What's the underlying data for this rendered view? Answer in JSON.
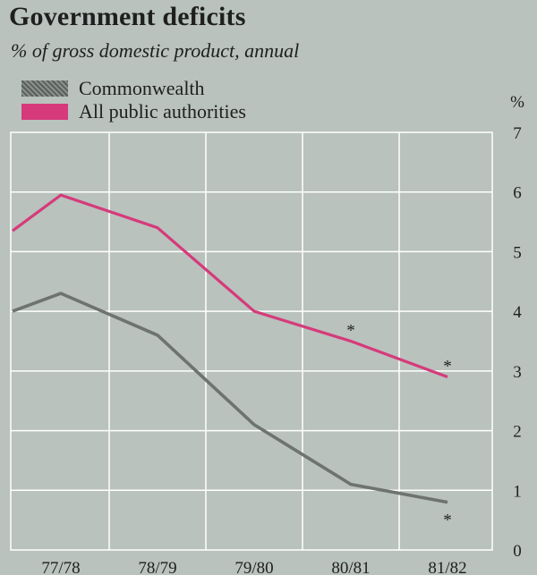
{
  "chart_data": {
    "type": "line",
    "title": "Government deficits",
    "subtitle": "% of gross domestic product, annual",
    "ylabel": "%",
    "ylim": [
      0,
      7
    ],
    "yticks": [
      "0",
      "1",
      "2",
      "3",
      "4",
      "5",
      "6",
      "7"
    ],
    "categories": [
      "77/78",
      "78/79",
      "79/80",
      "80/81",
      "81/82"
    ],
    "x": [
      -0.5,
      0,
      1,
      2,
      3,
      4
    ],
    "series": [
      {
        "name": "Commonwealth",
        "color": "#6e7370",
        "values": [
          4.0,
          4.3,
          3.6,
          2.1,
          1.1,
          0.8
        ],
        "annotations": [
          {
            "x": 4,
            "text": "*",
            "position": "below"
          }
        ]
      },
      {
        "name": "All public authorities",
        "color": "#d63a7a",
        "values": [
          5.35,
          5.95,
          5.4,
          4.0,
          3.5,
          2.9
        ],
        "annotations": [
          {
            "x": 3,
            "text": "*",
            "position": "above"
          },
          {
            "x": 4,
            "text": "*",
            "position": "above"
          }
        ]
      }
    ],
    "grid": true,
    "legend": "top-left"
  }
}
